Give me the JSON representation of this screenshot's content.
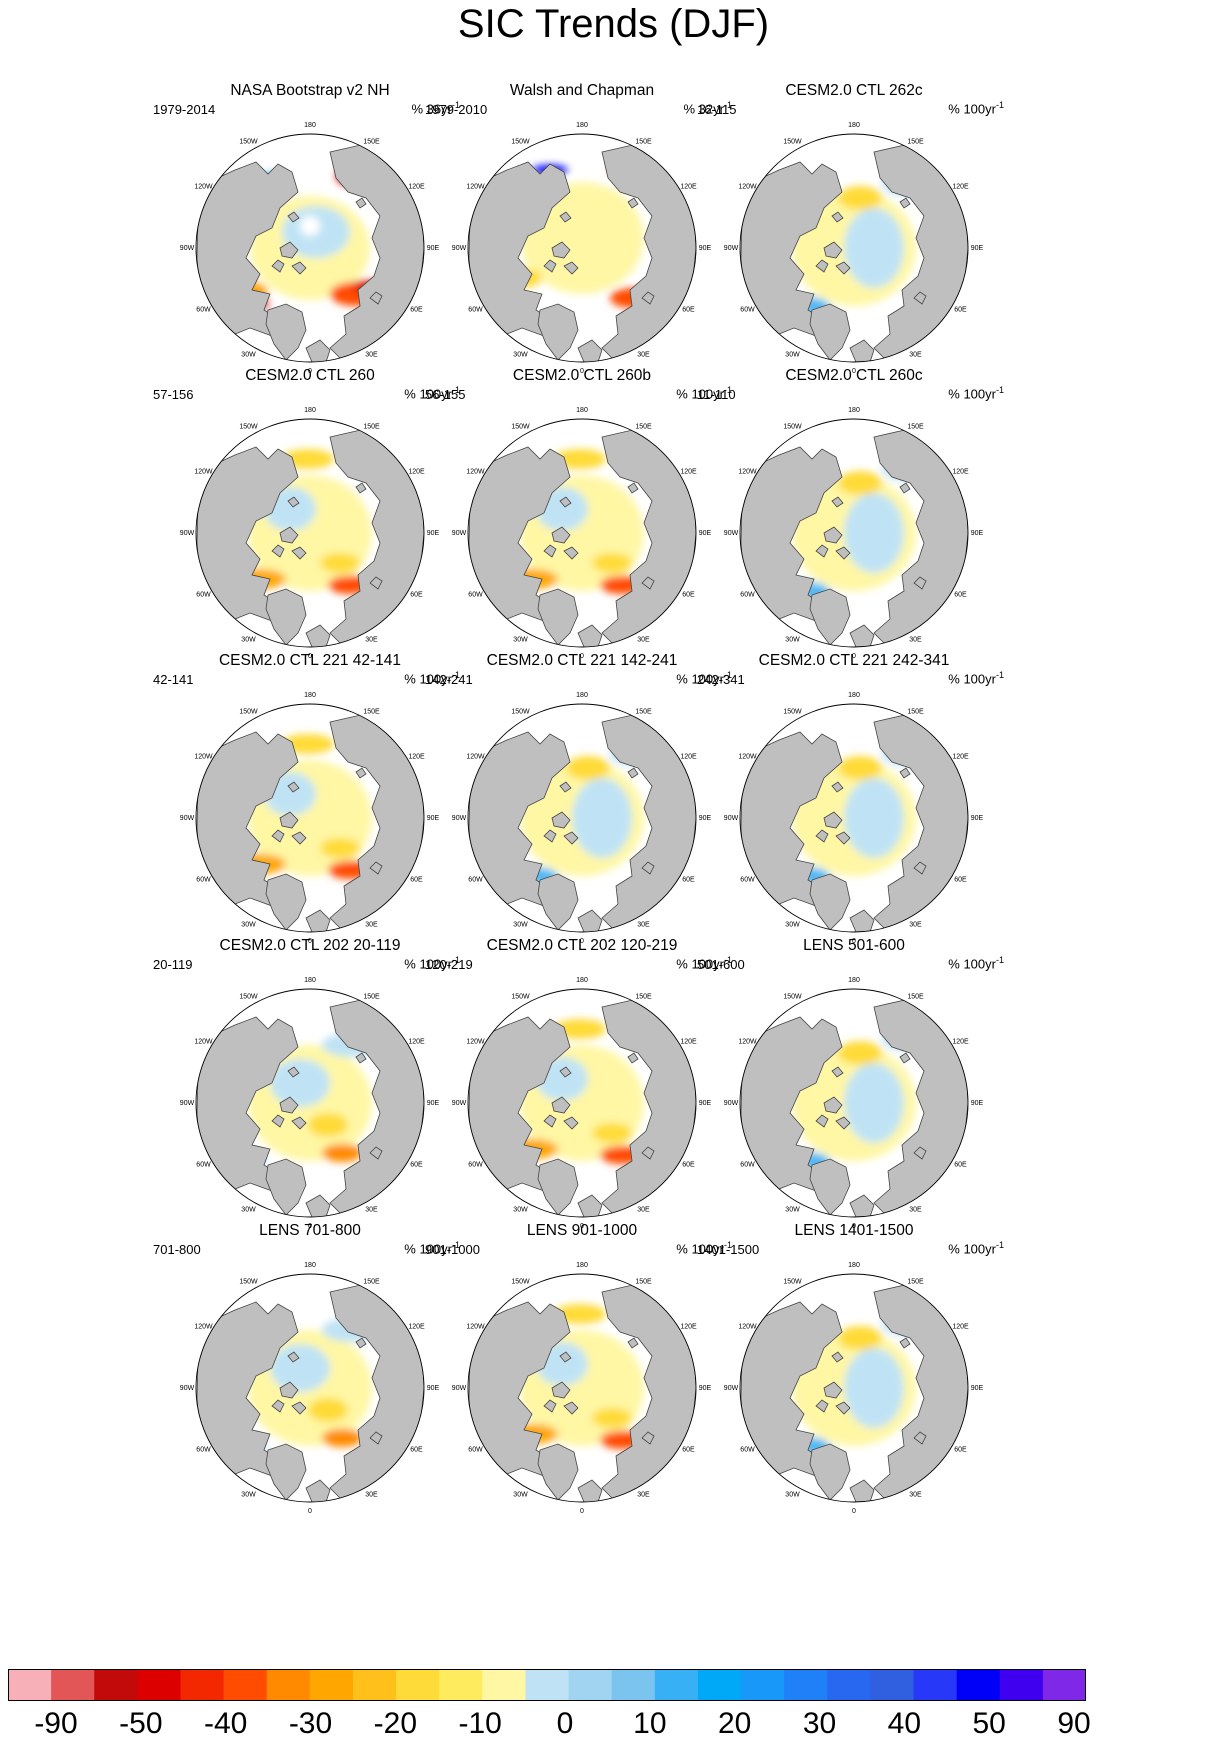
{
  "title": "SIC Trends (DJF)",
  "chart_data": {
    "type": "heatmap",
    "title": "SIC Trends (DJF)",
    "projection": "north polar stereographic",
    "longitude_labels": [
      "180",
      "150E",
      "120E",
      "90E",
      "60E",
      "30E",
      "0",
      "30W",
      "60W",
      "90W",
      "120W",
      "150W"
    ],
    "panels": [
      {
        "title": "NASA Bootstrap v2 NH",
        "period": "1979-2014",
        "units_prefix": "% 36yr",
        "units_exp": "-1",
        "pattern": "obs1"
      },
      {
        "title": "Walsh and Chapman",
        "period": "1979-2010",
        "units_prefix": "% 32yr",
        "units_exp": "-1",
        "pattern": "obs2"
      },
      {
        "title": "CESM2.0 CTL 262c",
        "period": "16-115",
        "units_prefix": "% 100yr",
        "units_exp": "-1",
        "pattern": "cool"
      },
      {
        "title": "CESM2.0 CTL 260",
        "period": "57-156",
        "units_prefix": "% 100yr",
        "units_exp": "-1",
        "pattern": "warm"
      },
      {
        "title": "CESM2.0 CTL 260b",
        "period": "56-155",
        "units_prefix": "% 100yr",
        "units_exp": "-1",
        "pattern": "warm"
      },
      {
        "title": "CESM2.0 CTL 260c",
        "period": "11-110",
        "units_prefix": "% 100yr",
        "units_exp": "-1",
        "pattern": "cool"
      },
      {
        "title": "CESM2.0 CTL 221 42-141",
        "period": "42-141",
        "units_prefix": "% 100yr",
        "units_exp": "-1",
        "pattern": "warm"
      },
      {
        "title": "CESM2.0 CTL 221 142-241",
        "period": "142-241",
        "units_prefix": "% 100yr",
        "units_exp": "-1",
        "pattern": "cool"
      },
      {
        "title": "CESM2.0 CTL 221 242-341",
        "period": "242-341",
        "units_prefix": "% 100yr",
        "units_exp": "-1",
        "pattern": "cool"
      },
      {
        "title": "CESM2.0 CTL 202 20-119",
        "period": "20-119",
        "units_prefix": "% 100yr",
        "units_exp": "-1",
        "pattern": "mixed"
      },
      {
        "title": "CESM2.0 CTL 202 120-219",
        "period": "120-219",
        "units_prefix": "% 100yr",
        "units_exp": "-1",
        "pattern": "warm"
      },
      {
        "title": "LENS 501-600",
        "period": "501-600",
        "units_prefix": "% 100yr",
        "units_exp": "-1",
        "pattern": "cool"
      },
      {
        "title": "LENS 701-800",
        "period": "701-800",
        "units_prefix": "% 100yr",
        "units_exp": "-1",
        "pattern": "mixed"
      },
      {
        "title": "LENS 901-1000",
        "period": "901-1000",
        "units_prefix": "% 100yr",
        "units_exp": "-1",
        "pattern": "warm"
      },
      {
        "title": "LENS 1401-1500",
        "period": "1401-1500",
        "units_prefix": "% 100yr",
        "units_exp": "-1",
        "pattern": "cool"
      }
    ],
    "colorbar": {
      "labels": [
        "-90",
        "-50",
        "-40",
        "-30",
        "-20",
        "-10",
        "0",
        "10",
        "20",
        "30",
        "40",
        "50",
        "90"
      ],
      "colors": [
        "#f8b0b8",
        "#e25658",
        "#c20a0a",
        "#dd0000",
        "#f42800",
        "#ff4c00",
        "#ff8a00",
        "#ffa600",
        "#ffc01c",
        "#ffdb39",
        "#ffeb5e",
        "#fff7a4",
        "#bfe3f5",
        "#a0d4f0",
        "#7cc4f0",
        "#38b0f5",
        "#00a8f8",
        "#1898f8",
        "#2080f8",
        "#2868f0",
        "#3060e0",
        "#2838f8",
        "#0000f8",
        "#4000f0",
        "#8028e8"
      ]
    },
    "colors": {
      "land": "#bfbfbf",
      "ocean_no_trend": "#ffffff",
      "coast": "#444444"
    }
  }
}
